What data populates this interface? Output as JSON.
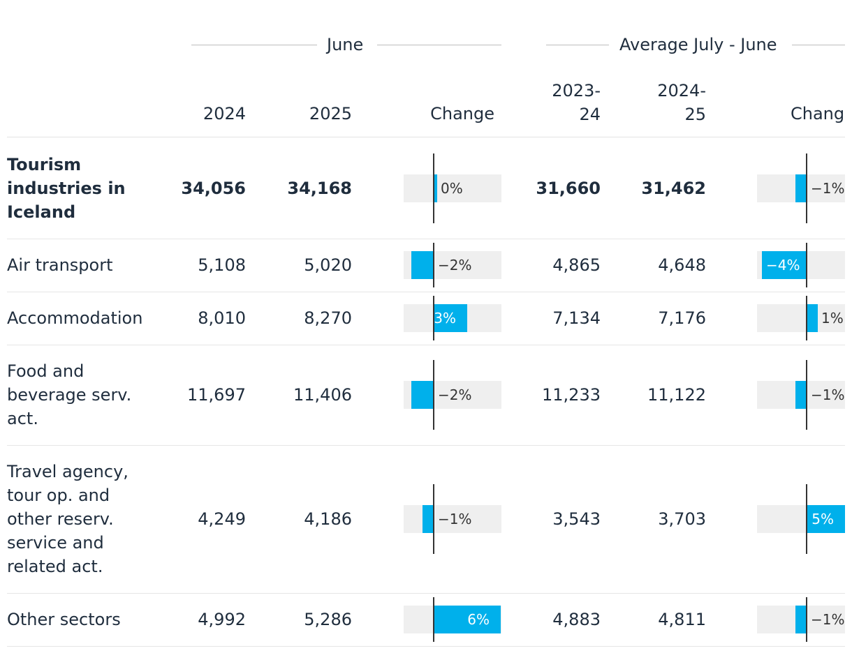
{
  "chart_data": {
    "type": "table",
    "groups": [
      {
        "title": "June",
        "columns": [
          "2024",
          "2025",
          "Change"
        ]
      },
      {
        "title": "Average July - June",
        "columns": [
          "2023-\n24",
          "2024-\n25",
          "Change"
        ]
      }
    ],
    "rows": [
      {
        "label": "Tourism industries in Iceland",
        "bold": true,
        "june_2024": "34,056",
        "june_2025": "34,168",
        "june_change": 0,
        "june_change_label": "0%",
        "avg_2023_24": "31,660",
        "avg_2024_25": "31,462",
        "avg_change": -1,
        "avg_change_label": "−1%"
      },
      {
        "label": "Air transport",
        "bold": false,
        "june_2024": "5,108",
        "june_2025": "5,020",
        "june_change": -2,
        "june_change_label": "−2%",
        "avg_2023_24": "4,865",
        "avg_2024_25": "4,648",
        "avg_change": -4,
        "avg_change_label": "−4%"
      },
      {
        "label": "Accommodation",
        "bold": false,
        "june_2024": "8,010",
        "june_2025": "8,270",
        "june_change": 3,
        "june_change_label": "3%",
        "avg_2023_24": "7,134",
        "avg_2024_25": "7,176",
        "avg_change": 1,
        "avg_change_label": "1%"
      },
      {
        "label": "Food and beverage serv. act.",
        "bold": false,
        "june_2024": "11,697",
        "june_2025": "11,406",
        "june_change": -2,
        "june_change_label": "−2%",
        "avg_2023_24": "11,233",
        "avg_2024_25": "11,122",
        "avg_change": -1,
        "avg_change_label": "−1%"
      },
      {
        "label": "Travel agency, tour op. and other reserv. service and related act.",
        "bold": false,
        "june_2024": "4,249",
        "june_2025": "4,186",
        "june_change": -1,
        "june_change_label": "−1%",
        "avg_2023_24": "3,543",
        "avg_2024_25": "3,703",
        "avg_change": 5,
        "avg_change_label": "5%"
      },
      {
        "label": "Other sectors",
        "bold": false,
        "june_2024": "4,992",
        "june_2025": "5,286",
        "june_change": 6,
        "june_change_label": "6%",
        "avg_2023_24": "4,883",
        "avg_2024_25": "4,811",
        "avg_change": -1,
        "avg_change_label": "−1%"
      }
    ],
    "bar_color": "#00b0eb",
    "track_color": "#efefef"
  }
}
